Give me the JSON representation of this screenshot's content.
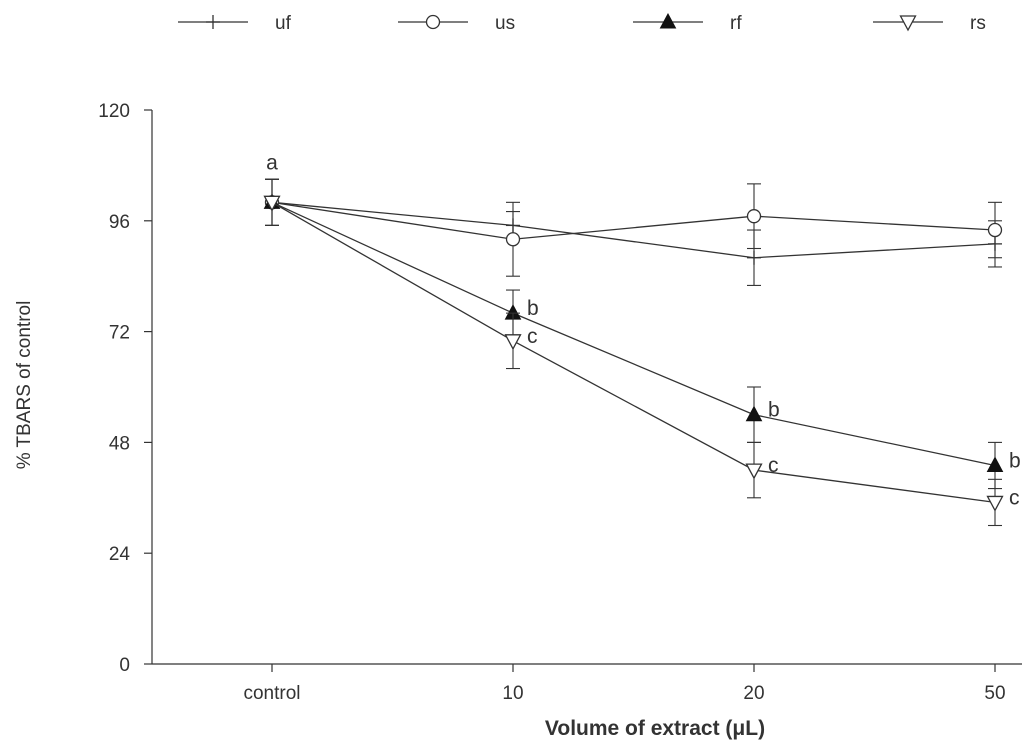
{
  "chart_data": {
    "type": "line",
    "title": "",
    "xlabel": "Volume of extract (μL)",
    "ylabel": "% TBARS of control",
    "categories": [
      "control",
      "10",
      "20",
      "50"
    ],
    "ylim": [
      0,
      120
    ],
    "yticks": [
      0,
      24,
      48,
      72,
      96,
      120
    ],
    "grid": false,
    "legend_position": "top",
    "series": [
      {
        "name": "uf",
        "marker": "plus",
        "values": [
          100,
          95,
          88,
          91
        ],
        "errors": [
          5,
          3,
          6,
          5
        ]
      },
      {
        "name": "us",
        "marker": "open-circle",
        "values": [
          100,
          92,
          97,
          94
        ],
        "errors": [
          5,
          8,
          7,
          6
        ]
      },
      {
        "name": "rf",
        "marker": "filled-triangle-up",
        "values": [
          100,
          76,
          54,
          43
        ],
        "errors": [
          5,
          5,
          6,
          5
        ]
      },
      {
        "name": "rs",
        "marker": "open-triangle-down",
        "values": [
          100,
          70,
          42,
          35
        ],
        "errors": [
          5,
          6,
          6,
          5
        ]
      }
    ],
    "annotations": [
      {
        "category": "control",
        "series": "uf",
        "text": "a"
      },
      {
        "category": "10",
        "series": "rf",
        "text": "b"
      },
      {
        "category": "10",
        "series": "rs",
        "text": "c"
      },
      {
        "category": "20",
        "series": "rf",
        "text": "b"
      },
      {
        "category": "20",
        "series": "rs",
        "text": "c"
      },
      {
        "category": "50",
        "series": "rf",
        "text": "b"
      },
      {
        "category": "50",
        "series": "rs",
        "text": "c"
      }
    ],
    "colors": {
      "line": "#333333",
      "marker_fill": "#111111",
      "background": "#ffffff"
    }
  }
}
